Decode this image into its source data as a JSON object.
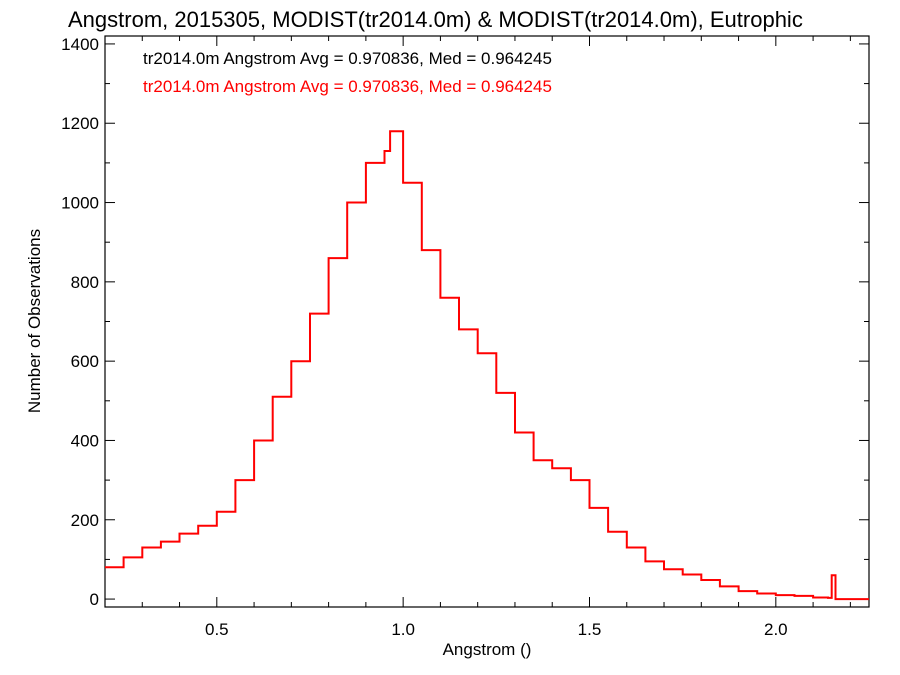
{
  "chart_data": {
    "type": "histogram-step",
    "title": "Angstrom, 2015305, MODIST(tr2014.0m) & MODIST(tr2014.0m), Eutrophic",
    "xlabel": "Angstrom ()",
    "ylabel": "Number of Observations",
    "xlim": [
      0.2,
      2.25
    ],
    "ylim": [
      -20,
      1420
    ],
    "xticks": [
      0.5,
      1.0,
      1.5,
      2.0
    ],
    "xtick_labels": [
      "0.5",
      "1.0",
      "1.5",
      "2.0"
    ],
    "yticks": [
      0,
      200,
      400,
      600,
      800,
      1000,
      1200,
      1400
    ],
    "ytick_labels": [
      "0",
      "200",
      "400",
      "600",
      "800",
      "1000",
      "1200",
      "1400"
    ],
    "legend": [
      {
        "text": "tr2014.0m Angstrom Avg = 0.970836, Med = 0.964245",
        "color": "#000000"
      },
      {
        "text": "tr2014.0m Angstrom Avg = 0.970836, Med = 0.964245",
        "color": "#ff0000"
      }
    ],
    "legend_position": "top-left",
    "series": [
      {
        "color": "#ff0000",
        "x": [
          0.2,
          0.25,
          0.3,
          0.35,
          0.4,
          0.45,
          0.5,
          0.55,
          0.6,
          0.65,
          0.7,
          0.75,
          0.8,
          0.85,
          0.9,
          0.95,
          0.965,
          1.0,
          1.05,
          1.1,
          1.15,
          1.2,
          1.25,
          1.3,
          1.35,
          1.4,
          1.45,
          1.5,
          1.55,
          1.6,
          1.65,
          1.7,
          1.75,
          1.8,
          1.85,
          1.9,
          1.95,
          2.0,
          2.05,
          2.1,
          2.14,
          2.15,
          2.16,
          2.25
        ],
        "y": [
          80,
          105,
          130,
          145,
          165,
          185,
          220,
          300,
          400,
          510,
          600,
          720,
          860,
          1000,
          1100,
          1130,
          1180,
          1050,
          880,
          760,
          680,
          620,
          520,
          420,
          350,
          330,
          300,
          230,
          170,
          130,
          95,
          75,
          62,
          48,
          32,
          20,
          14,
          10,
          8,
          4,
          3,
          60,
          0,
          0
        ]
      }
    ]
  }
}
